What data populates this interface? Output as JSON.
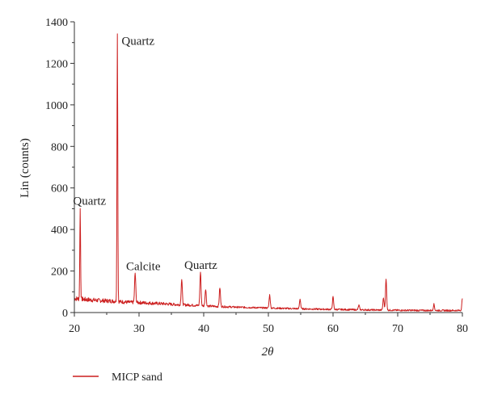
{
  "chart_data": {
    "type": "line",
    "xlabel": "2θ",
    "ylabel": "Lin (counts)",
    "xlim": [
      20,
      80
    ],
    "ylim": [
      0,
      1400
    ],
    "xticks": [
      20,
      30,
      40,
      50,
      60,
      70,
      80
    ],
    "yticks": [
      0,
      200,
      400,
      600,
      800,
      1000,
      1200,
      1400
    ],
    "grid": false,
    "legend_position": "bottom-left",
    "series": [
      {
        "name": "MICP sand",
        "color": "#cc1f1f",
        "baseline": [
          [
            20,
            68
          ],
          [
            22,
            62
          ],
          [
            24,
            58
          ],
          [
            26,
            55
          ],
          [
            28,
            50
          ],
          [
            30,
            48
          ],
          [
            32,
            45
          ],
          [
            34,
            42
          ],
          [
            36,
            38
          ],
          [
            38,
            36
          ],
          [
            40,
            32
          ],
          [
            45,
            26
          ],
          [
            50,
            22
          ],
          [
            55,
            18
          ],
          [
            60,
            15
          ],
          [
            65,
            13
          ],
          [
            70,
            11
          ],
          [
            75,
            10
          ],
          [
            80,
            10
          ]
        ],
        "peaks": [
          {
            "x": 20.9,
            "y": 500
          },
          {
            "x": 26.65,
            "y": 1350
          },
          {
            "x": 29.4,
            "y": 190
          },
          {
            "x": 36.6,
            "y": 160
          },
          {
            "x": 39.5,
            "y": 195
          },
          {
            "x": 40.3,
            "y": 115
          },
          {
            "x": 42.5,
            "y": 120
          },
          {
            "x": 50.2,
            "y": 85
          },
          {
            "x": 54.9,
            "y": 65
          },
          {
            "x": 60.0,
            "y": 75
          },
          {
            "x": 64.0,
            "y": 35
          },
          {
            "x": 67.8,
            "y": 70
          },
          {
            "x": 68.2,
            "y": 160
          },
          {
            "x": 75.6,
            "y": 40
          },
          {
            "x": 80.0,
            "y": 65
          }
        ]
      }
    ],
    "annotations": [
      {
        "text": "Quartz",
        "x": 19.8,
        "y": 520
      },
      {
        "text": "Quartz",
        "x": 27.3,
        "y": 1290
      },
      {
        "text": "Calcite",
        "x": 28.0,
        "y": 205
      },
      {
        "text": "Quartz",
        "x": 37.0,
        "y": 210
      }
    ]
  },
  "legend": {
    "label": "MICP sand",
    "color": "#cc1f1f"
  }
}
